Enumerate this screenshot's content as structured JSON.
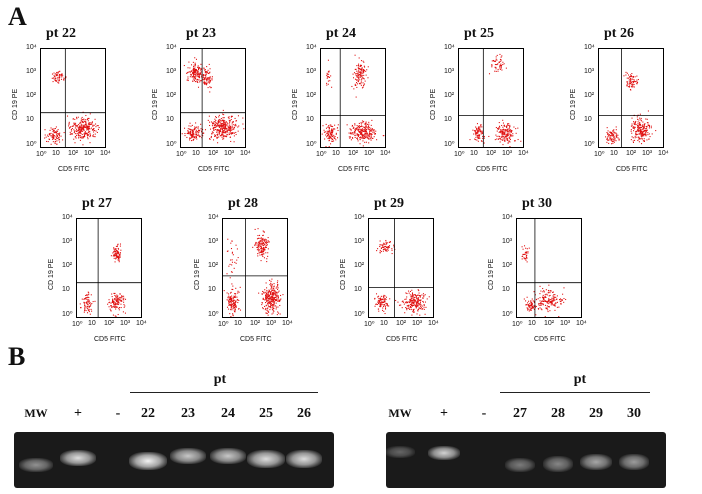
{
  "panel_a": {
    "letter": "A",
    "plots": [
      {
        "title": "pt 22"
      },
      {
        "title": "pt 23"
      },
      {
        "title": "pt 24"
      },
      {
        "title": "pt 25"
      },
      {
        "title": "pt 26"
      },
      {
        "title": "pt 27"
      },
      {
        "title": "pt 28"
      },
      {
        "title": "pt 29"
      },
      {
        "title": "pt 30"
      }
    ],
    "axes": {
      "ylabel": "CD 19 PE",
      "xlabel": "CD5 FITC",
      "yticks": [
        "10⁴",
        "10³",
        "10²",
        "10",
        "10⁰"
      ],
      "xticks": [
        "10⁰",
        "10",
        "10²",
        "10³",
        "10⁴"
      ]
    },
    "dot_color": "#e01010"
  },
  "panel_b": {
    "letter": "B",
    "left_gel": {
      "group_label": "pt",
      "lanes": [
        "MW",
        "+",
        "-",
        "22",
        "23",
        "24",
        "25",
        "26"
      ]
    },
    "right_gel": {
      "group_label": "pt",
      "lanes": [
        "MW",
        "+",
        "-",
        "27",
        "28",
        "29",
        "30"
      ]
    }
  }
}
